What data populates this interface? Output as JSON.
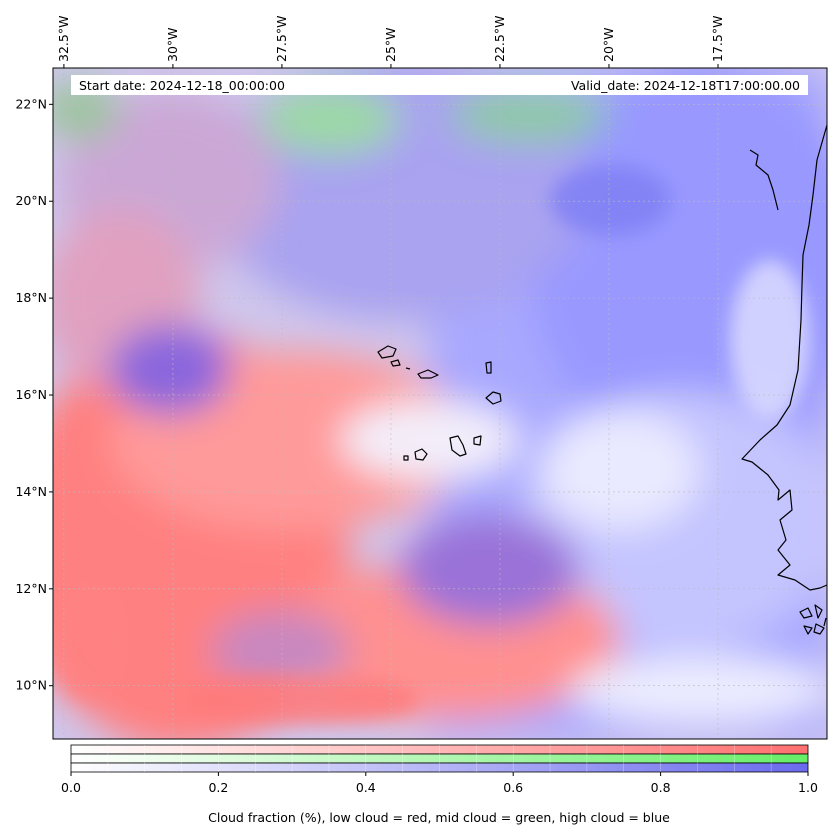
{
  "header": {
    "start_date_text": "Start date: 2024-12-18_00:00:00",
    "valid_date_text": "Valid_date: 2024-12-18T17:00:00.00"
  },
  "map": {
    "lon_range": [
      -32.75,
      -15.0
    ],
    "lat_range": [
      8.9,
      22.75
    ],
    "lon_ticks": [
      {
        "value": -32.5,
        "label": "32.5°W"
      },
      {
        "value": -30.0,
        "label": "30°W"
      },
      {
        "value": -27.5,
        "label": "27.5°W"
      },
      {
        "value": -25.0,
        "label": "25°W"
      },
      {
        "value": -22.5,
        "label": "22.5°W"
      },
      {
        "value": -20.0,
        "label": "20°W"
      },
      {
        "value": -17.5,
        "label": "17.5°W"
      }
    ],
    "lat_ticks": [
      {
        "value": 10,
        "label": "10°N"
      },
      {
        "value": 12,
        "label": "12°N"
      },
      {
        "value": 14,
        "label": "14°N"
      },
      {
        "value": 16,
        "label": "16°N"
      },
      {
        "value": 18,
        "label": "18°N"
      },
      {
        "value": 20,
        "label": "20°N"
      },
      {
        "value": 22,
        "label": "22°N"
      }
    ],
    "colors": {
      "low_cloud": "#ff6f6f",
      "mid_cloud": "#66dd77",
      "high_cloud": "#7777ff",
      "coastline": "#000000"
    }
  },
  "colorbar": {
    "min": 0.0,
    "max": 1.0,
    "ticks": [
      {
        "value": 0.0,
        "label": "0.0"
      },
      {
        "value": 0.2,
        "label": "0.2"
      },
      {
        "value": 0.4,
        "label": "0.4"
      },
      {
        "value": 0.6,
        "label": "0.6"
      },
      {
        "value": 0.8,
        "label": "0.8"
      },
      {
        "value": 1.0,
        "label": "1.0"
      }
    ],
    "label": "Cloud fraction (%), low cloud = red, mid cloud = green, high cloud = blue"
  }
}
